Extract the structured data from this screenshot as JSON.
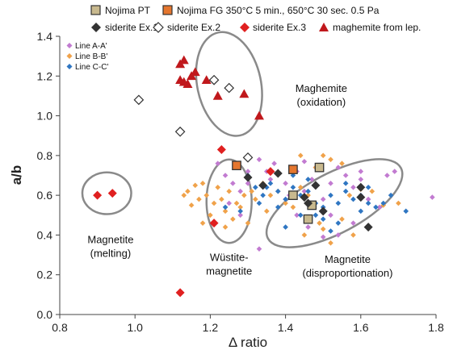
{
  "chart_data": {
    "type": "scatter",
    "xlabel": "Δ ratio",
    "ylabel": "a/b",
    "xlim": [
      0.8,
      1.8
    ],
    "ylim": [
      0.0,
      1.4
    ],
    "xticks": [
      "0.8",
      "1.0",
      "1.2",
      "1.4",
      "1.6",
      "1.8"
    ],
    "yticks": [
      "0.0",
      "0.2",
      "0.4",
      "0.6",
      "0.8",
      "1.0",
      "1.2",
      "1.4"
    ],
    "grid": false,
    "legend_placement": "top",
    "colors": {
      "line_a": "#c27bd1",
      "line_b": "#f0a24a",
      "line_c": "#2f76c2",
      "nojima_pt": "#c8b98e",
      "nojima_fg": "#e5762e",
      "siderite": "#333333",
      "siderite_ex3": "#e02020",
      "maghemite": "#c0181c",
      "ellipse": "#8a8a8a"
    },
    "series": [
      {
        "name": "Line A-A'",
        "marker": "diamond-small",
        "color": "#c27bd1",
        "points": [
          [
            1.22,
            0.76
          ],
          [
            1.24,
            0.7
          ],
          [
            1.26,
            0.66
          ],
          [
            1.28,
            0.62
          ],
          [
            1.3,
            0.72
          ],
          [
            1.33,
            0.78
          ],
          [
            1.35,
            0.72
          ],
          [
            1.37,
            0.76
          ],
          [
            1.4,
            0.66
          ],
          [
            1.41,
            0.6
          ],
          [
            1.43,
            0.72
          ],
          [
            1.45,
            0.62
          ],
          [
            1.47,
            0.68
          ],
          [
            1.5,
            0.58
          ],
          [
            1.52,
            0.66
          ],
          [
            1.54,
            0.74
          ],
          [
            1.56,
            0.7
          ],
          [
            1.58,
            0.64
          ],
          [
            1.6,
            0.68
          ],
          [
            1.62,
            0.58
          ],
          [
            1.65,
            0.54
          ],
          [
            1.67,
            0.7
          ],
          [
            1.69,
            0.72
          ],
          [
            1.79,
            0.59
          ],
          [
            1.33,
            0.33
          ],
          [
            1.4,
            0.58
          ],
          [
            1.46,
            0.44
          ],
          [
            1.5,
            0.39
          ],
          [
            1.54,
            0.4
          ],
          [
            1.43,
            0.5
          ],
          [
            1.28,
            0.5
          ],
          [
            1.25,
            0.56
          ],
          [
            1.36,
            0.68
          ],
          [
            1.52,
            0.5
          ],
          [
            1.58,
            0.46
          ],
          [
            1.48,
            0.74
          ],
          [
            1.45,
            0.77
          ],
          [
            1.6,
            0.72
          ],
          [
            1.3,
            0.66
          ]
        ]
      },
      {
        "name": "Line B-B'",
        "marker": "diamond-small",
        "color": "#f0a24a",
        "points": [
          [
            1.13,
            0.6
          ],
          [
            1.14,
            0.62
          ],
          [
            1.15,
            0.55
          ],
          [
            1.16,
            0.65
          ],
          [
            1.17,
            0.58
          ],
          [
            1.18,
            0.66
          ],
          [
            1.19,
            0.6
          ],
          [
            1.21,
            0.56
          ],
          [
            1.22,
            0.64
          ],
          [
            1.23,
            0.58
          ],
          [
            1.24,
            0.52
          ],
          [
            1.25,
            0.62
          ],
          [
            1.26,
            0.48
          ],
          [
            1.27,
            0.56
          ],
          [
            1.28,
            0.54
          ],
          [
            1.29,
            0.6
          ],
          [
            1.31,
            0.62
          ],
          [
            1.32,
            0.58
          ],
          [
            1.34,
            0.66
          ],
          [
            1.36,
            0.6
          ],
          [
            1.38,
            0.62
          ],
          [
            1.4,
            0.56
          ],
          [
            1.42,
            0.54
          ],
          [
            1.44,
            0.64
          ],
          [
            1.46,
            0.6
          ],
          [
            1.48,
            0.74
          ],
          [
            1.5,
            0.8
          ],
          [
            1.52,
            0.78
          ],
          [
            1.55,
            0.76
          ],
          [
            1.57,
            0.6
          ],
          [
            1.6,
            0.63
          ],
          [
            1.63,
            0.62
          ],
          [
            1.66,
            0.55
          ],
          [
            1.7,
            0.56
          ],
          [
            1.45,
            0.4
          ],
          [
            1.5,
            0.43
          ],
          [
            1.55,
            0.48
          ],
          [
            1.58,
            0.4
          ],
          [
            1.52,
            0.36
          ],
          [
            1.49,
            0.46
          ],
          [
            1.35,
            0.52
          ],
          [
            1.24,
            0.44
          ],
          [
            1.2,
            0.5
          ],
          [
            1.18,
            0.46
          ],
          [
            1.3,
            0.46
          ],
          [
            1.44,
            0.8
          ]
        ]
      },
      {
        "name": "Line C-C'",
        "marker": "diamond-small",
        "color": "#2f76c2",
        "points": [
          [
            1.3,
            0.7
          ],
          [
            1.32,
            0.64
          ],
          [
            1.34,
            0.6
          ],
          [
            1.36,
            0.66
          ],
          [
            1.38,
            0.62
          ],
          [
            1.4,
            0.58
          ],
          [
            1.42,
            0.64
          ],
          [
            1.44,
            0.6
          ],
          [
            1.46,
            0.62
          ],
          [
            1.48,
            0.56
          ],
          [
            1.5,
            0.54
          ],
          [
            1.52,
            0.6
          ],
          [
            1.54,
            0.56
          ],
          [
            1.56,
            0.62
          ],
          [
            1.58,
            0.58
          ],
          [
            1.6,
            0.6
          ],
          [
            1.62,
            0.56
          ],
          [
            1.64,
            0.54
          ],
          [
            1.66,
            0.56
          ],
          [
            1.68,
            0.6
          ],
          [
            1.72,
            0.52
          ],
          [
            1.4,
            0.44
          ],
          [
            1.44,
            0.5
          ],
          [
            1.48,
            0.5
          ],
          [
            1.5,
            0.48
          ],
          [
            1.52,
            0.42
          ],
          [
            1.38,
            0.54
          ],
          [
            1.35,
            0.64
          ],
          [
            1.33,
            0.56
          ],
          [
            1.46,
            0.68
          ],
          [
            1.42,
            0.7
          ],
          [
            1.56,
            0.66
          ],
          [
            1.6,
            0.52
          ],
          [
            1.62,
            0.64
          ],
          [
            1.24,
            0.54
          ],
          [
            1.28,
            0.52
          ],
          [
            1.54,
            0.46
          ],
          [
            1.36,
            0.72
          ]
        ]
      },
      {
        "name": "Nojima PT",
        "marker": "square",
        "color": "#c8b98e",
        "points": [
          [
            1.42,
            0.6
          ],
          [
            1.46,
            0.48
          ],
          [
            1.47,
            0.55
          ],
          [
            1.49,
            0.74
          ]
        ]
      },
      {
        "name": "Nojima FG 350°C 5 min., 650°C 30 sec. 0.5 Pa",
        "marker": "square",
        "color": "#e5762e",
        "points": [
          [
            1.27,
            0.75
          ],
          [
            1.42,
            0.73
          ]
        ]
      },
      {
        "name": "siderite Ex.1",
        "marker": "diamond-filled",
        "color": "#333333",
        "points": [
          [
            1.3,
            0.69
          ],
          [
            1.34,
            0.65
          ],
          [
            1.38,
            0.71
          ],
          [
            1.45,
            0.59
          ],
          [
            1.46,
            0.56
          ],
          [
            1.48,
            0.65
          ],
          [
            1.5,
            0.52
          ],
          [
            1.6,
            0.64
          ],
          [
            1.6,
            0.59
          ],
          [
            1.62,
            0.44
          ]
        ]
      },
      {
        "name": "siderite Ex.2",
        "marker": "diamond-open",
        "color": "#333333",
        "points": [
          [
            1.01,
            1.08
          ],
          [
            1.12,
            0.92
          ],
          [
            1.21,
            1.18
          ],
          [
            1.25,
            1.14
          ],
          [
            1.3,
            0.79
          ]
        ]
      },
      {
        "name": "siderite Ex.3",
        "marker": "diamond-filled",
        "color": "#e02020",
        "points": [
          [
            0.9,
            0.6
          ],
          [
            0.94,
            0.61
          ],
          [
            1.12,
            0.11
          ],
          [
            1.21,
            0.46
          ],
          [
            1.23,
            0.83
          ],
          [
            1.36,
            0.72
          ]
        ]
      },
      {
        "name": "maghemite from lep.",
        "marker": "triangle",
        "color": "#c0181c",
        "points": [
          [
            1.12,
            1.26
          ],
          [
            1.13,
            1.28
          ],
          [
            1.12,
            1.18
          ],
          [
            1.13,
            1.17
          ],
          [
            1.14,
            1.16
          ],
          [
            1.15,
            1.2
          ],
          [
            1.16,
            1.22
          ],
          [
            1.19,
            1.18
          ],
          [
            1.22,
            1.1
          ],
          [
            1.29,
            1.11
          ],
          [
            1.33,
            1.0
          ]
        ]
      }
    ],
    "annotations": [
      {
        "lines": [
          "Magnetite",
          "(melting)"
        ],
        "x": 0.935,
        "y": 0.36
      },
      {
        "lines": [
          "Maghemite",
          "(oxidation)"
        ],
        "x": 1.495,
        "y": 1.12
      },
      {
        "lines": [
          "Wüstite-",
          "magnetite"
        ],
        "x": 1.25,
        "y": 0.27
      },
      {
        "lines": [
          "Magnetite",
          "(disproportionation)"
        ],
        "x": 1.565,
        "y": 0.26
      }
    ],
    "ellipses": [
      {
        "cx": 0.925,
        "cy": 0.61,
        "rx": 0.065,
        "ry": 0.105,
        "angle": 0
      },
      {
        "cx": 1.25,
        "cy": 1.16,
        "rx": 0.14,
        "ry": 0.16,
        "angle": 78
      },
      {
        "cx": 1.25,
        "cy": 0.57,
        "rx": 0.06,
        "ry": 0.21,
        "angle": 0
      },
      {
        "cx": 1.53,
        "cy": 0.56,
        "rx": 0.2,
        "ry": 0.15,
        "angle": -28
      }
    ]
  }
}
